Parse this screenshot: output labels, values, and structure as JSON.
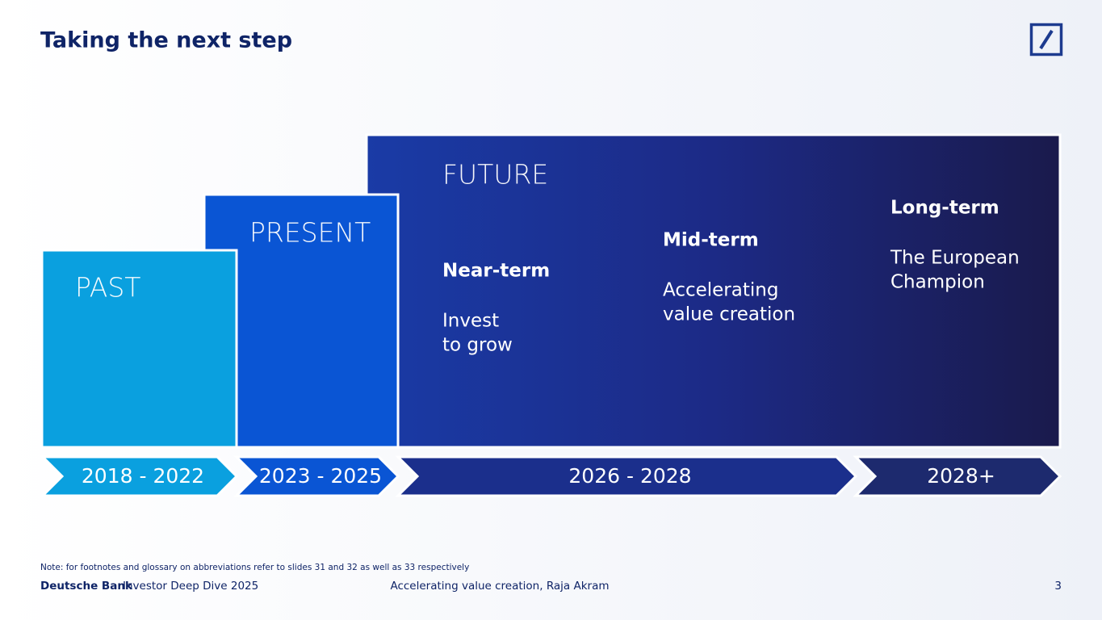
{
  "header": {
    "title": "Taking the next step"
  },
  "phases": [
    {
      "label": "PAST"
    },
    {
      "label": "PRESENT"
    },
    {
      "label": "FUTURE"
    }
  ],
  "horizons": [
    {
      "title": "Near-term",
      "lines": [
        "Invest",
        "to grow"
      ]
    },
    {
      "title": "Mid-term",
      "lines": [
        "Accelerating",
        "value creation"
      ]
    },
    {
      "title": "Long-term",
      "lines": [
        "The European",
        "Champion"
      ]
    }
  ],
  "timeline": [
    "2018 - 2022",
    "2023 - 2025",
    "2026 - 2028",
    "2028+"
  ],
  "note": "Note: for footnotes and glossary on abbreviations refer to slides 31 and 32 as well as 33 respectively",
  "footer": {
    "brand": "Deutsche Bank",
    "event": "Investor Deep Dive 2025",
    "center": "Accelerating value creation, Raja Akram",
    "page": "3"
  }
}
